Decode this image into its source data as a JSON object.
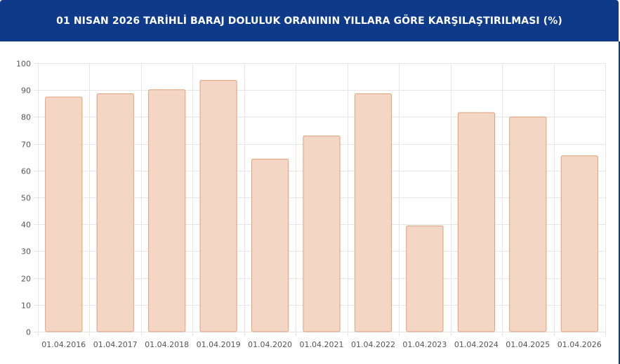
{
  "header": {
    "title": "01 NISAN 2026 TARİHLİ BARAJ DOLULUK ORANININ YILLARA GÖRE KARŞILAŞTIRILMASI (%)"
  },
  "colors": {
    "header_bg": "#0f3a8a",
    "bar_fill": "#f3d6c4",
    "bar_stroke": "#e2a07a",
    "grid": "#e6e6e6"
  },
  "chart_data": {
    "type": "bar",
    "title": "01 NISAN 2026 TARİHLİ BARAJ DOLULUK ORANININ YILLARA GÖRE KARŞILAŞTIRILMASI (%)",
    "categories": [
      "01.04.2016",
      "01.04.2017",
      "01.04.2018",
      "01.04.2019",
      "01.04.2020",
      "01.04.2021",
      "01.04.2022",
      "01.04.2023",
      "01.04.2024",
      "01.04.2025",
      "01.04.2026"
    ],
    "values": [
      87.4,
      88.6,
      90.1,
      93.6,
      64.3,
      72.9,
      88.6,
      39.4,
      81.6,
      80.0,
      65.5
    ],
    "ylim": [
      0,
      100
    ],
    "yticks": [
      "0",
      "10",
      "20",
      "30",
      "40",
      "50",
      "60",
      "70",
      "80",
      "90",
      "100"
    ],
    "xlabel": "",
    "ylabel": "",
    "grid": true,
    "legend": "none"
  }
}
